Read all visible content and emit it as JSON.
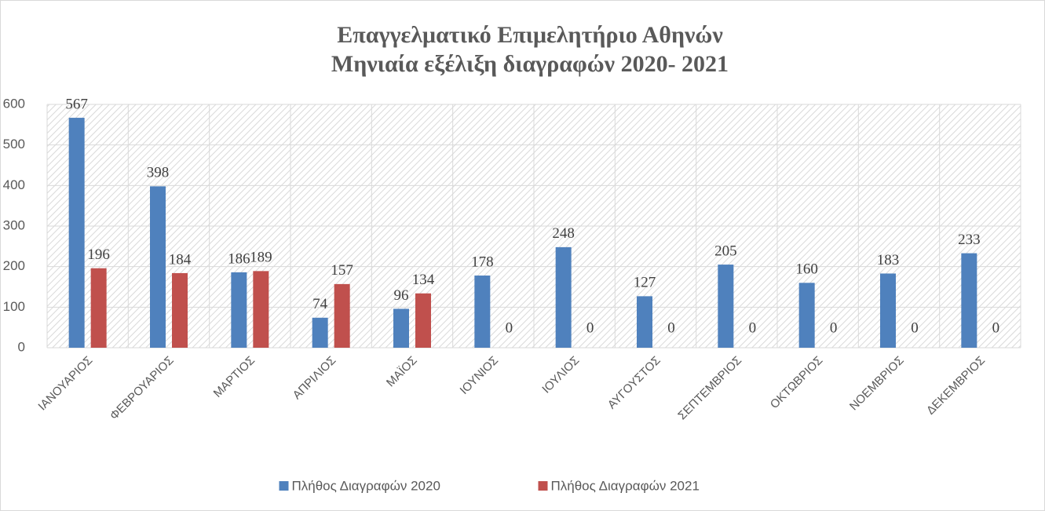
{
  "chart_data": {
    "type": "bar",
    "title": "Επαγγελματικό Επιμελητήριο Αθηνών",
    "subtitle": "Μηνιαία εξέλιξη διαγραφών 2020- 2021",
    "categories": [
      "ΙΑΝΟΥΑΡΙΟΣ",
      "ΦΕΒΡΟΥΑΡΙΟΣ",
      "ΜΑΡΤΙΟΣ",
      "ΑΠΡΙΛΙΟΣ",
      "ΜΑΪΟΣ",
      "ΙΟΥΝΙΟΣ",
      "ΙΟΥΛΙΟΣ",
      "ΑΥΓΟΥΣΤΟΣ",
      "ΣΕΠΤΕΜΒΡΙΟΣ",
      "ΟΚΤΩΒΡΙΟΣ",
      "ΝΟΕΜΒΡΙΟΣ",
      "ΔΕΚΕΜΒΡΙΟΣ"
    ],
    "series": [
      {
        "name": "Πλήθος Διαγραφών 2020",
        "color": "#4f81bd",
        "values": [
          567,
          398,
          186,
          74,
          96,
          178,
          248,
          127,
          205,
          160,
          183,
          233
        ]
      },
      {
        "name": "Πλήθος Διαγραφών 2021",
        "color": "#c0504d",
        "values": [
          196,
          184,
          189,
          157,
          134,
          0,
          0,
          0,
          0,
          0,
          0,
          0
        ]
      }
    ],
    "ylim": [
      0,
      600
    ],
    "yticks": [
      0,
      100,
      200,
      300,
      400,
      500,
      600
    ],
    "grid": true,
    "legend": "bottom"
  }
}
